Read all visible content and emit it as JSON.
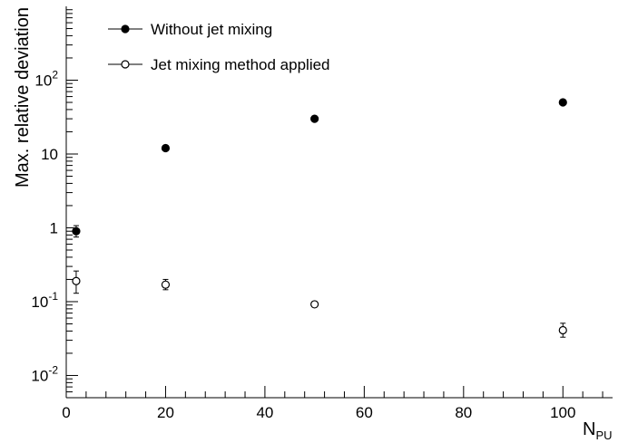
{
  "colors": {
    "marker": "#000000",
    "background": "#ffffff"
  },
  "chart_data": {
    "type": "scatter",
    "title": "",
    "xlabel": {
      "main": "N",
      "sub": "PU"
    },
    "ylabel": "Max. relative deviation",
    "xlim": [
      0,
      110
    ],
    "ylim": [
      0.005,
      1000
    ],
    "yscale": "log",
    "grid": false,
    "legend_position": "top-left",
    "x_ticks": [
      0,
      20,
      40,
      60,
      80,
      100
    ],
    "x_tick_labels": [
      "0",
      "20",
      "40",
      "60",
      "80",
      "100"
    ],
    "y_ticks": [
      {
        "value": 0.01,
        "base": "10",
        "exp": "-2"
      },
      {
        "value": 0.1,
        "base": "10",
        "exp": "-1"
      },
      {
        "value": 1,
        "base": "1",
        "exp": ""
      },
      {
        "value": 10,
        "base": "10",
        "exp": ""
      },
      {
        "value": 100,
        "base": "10",
        "exp": "2"
      }
    ],
    "series": [
      {
        "name": "Without jet mixing",
        "marker": "filled-circle",
        "points": [
          {
            "x": 2,
            "y": 0.9,
            "y_low": 0.75,
            "y_high": 1.07
          },
          {
            "x": 20,
            "y": 12
          },
          {
            "x": 50,
            "y": 30
          },
          {
            "x": 100,
            "y": 50
          }
        ]
      },
      {
        "name": "Jet mixing method applied",
        "marker": "open-circle",
        "points": [
          {
            "x": 2,
            "y": 0.19,
            "y_low": 0.13,
            "y_high": 0.26
          },
          {
            "x": 20,
            "y": 0.17,
            "y_low": 0.145,
            "y_high": 0.2
          },
          {
            "x": 50,
            "y": 0.092
          },
          {
            "x": 100,
            "y": 0.041,
            "y_low": 0.033,
            "y_high": 0.051
          }
        ]
      }
    ]
  }
}
